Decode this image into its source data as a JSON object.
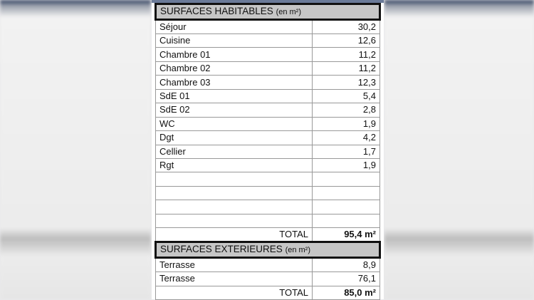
{
  "habitables": {
    "title": "SURFACES HABITABLES",
    "unit": "(en m²)",
    "rows": [
      {
        "label": "Séjour",
        "value": "30,2"
      },
      {
        "label": "Cuisine",
        "value": "12,6"
      },
      {
        "label": "Chambre 01",
        "value": "11,2"
      },
      {
        "label": "Chambre 02",
        "value": "11,2"
      },
      {
        "label": "Chambre 03",
        "value": "12,3"
      },
      {
        "label": "SdE 01",
        "value": "5,4"
      },
      {
        "label": "SdE 02",
        "value": "2,8"
      },
      {
        "label": "WC",
        "value": "1,9"
      },
      {
        "label": "Dgt",
        "value": "4,2"
      },
      {
        "label": "Cellier",
        "value": "1,7"
      },
      {
        "label": "Rgt",
        "value": "1,9"
      }
    ],
    "total_label": "TOTAL",
    "total": "95,4 m²"
  },
  "exterieures": {
    "title": "SURFACES EXTERIEURES",
    "unit": "(en m²)",
    "rows": [
      {
        "label": "Terrasse",
        "value": "8,9"
      },
      {
        "label": "Terrasse",
        "value": "76,1"
      }
    ],
    "total_label": "TOTAL",
    "total": "85,0 m²"
  }
}
